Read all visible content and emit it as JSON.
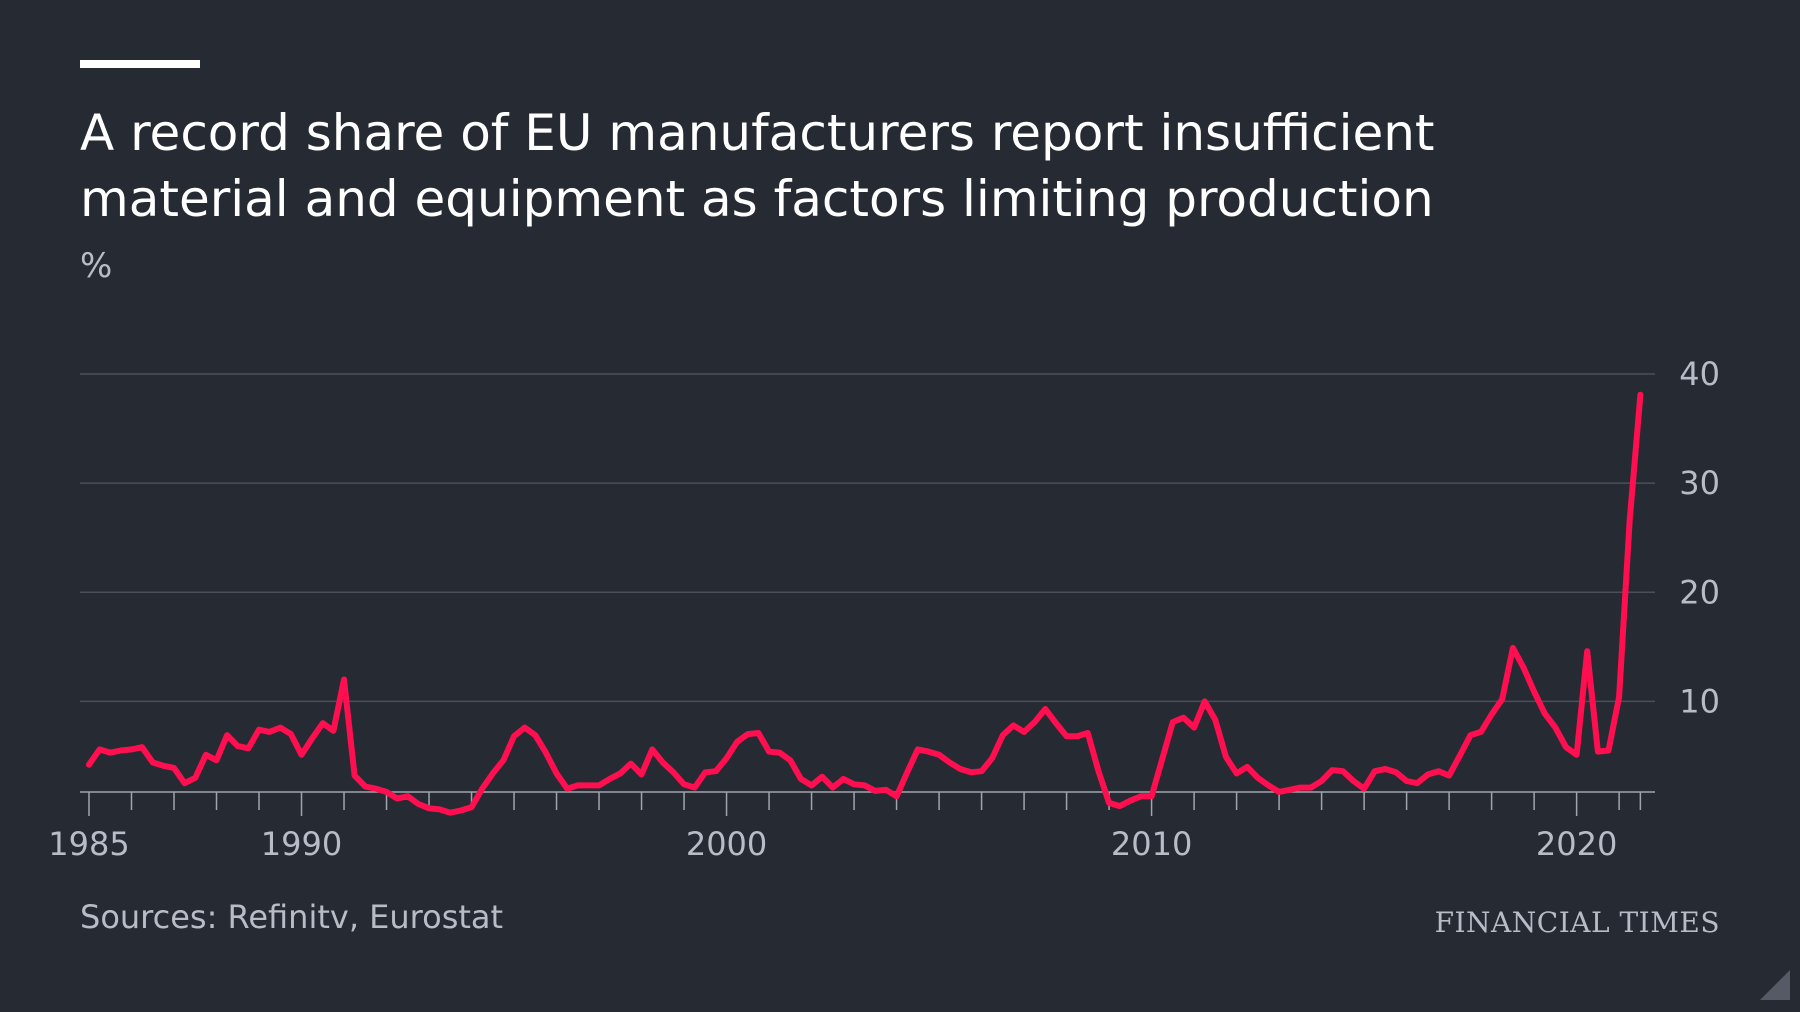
{
  "header": {
    "title": "A record share of EU manufacturers report insufficient material and equipment as factors limiting production",
    "unit": "%"
  },
  "footer": {
    "source": "Sources: Refinitv, Eurostat",
    "brand": "FINANCIAL TIMES"
  },
  "colors": {
    "background": "#262a33",
    "line": "#ff0f50",
    "grid": "#4a4f5a",
    "text_muted": "#b8bcc6"
  },
  "chart_data": {
    "type": "line",
    "title": "A record share of EU manufacturers report insufficient material and equipment as factors limiting production",
    "xlabel": "",
    "ylabel": "%",
    "xlim": [
      1985,
      2021.75
    ],
    "ylim": [
      0,
      40
    ],
    "y_ticks": [
      10,
      20,
      30,
      40
    ],
    "x_tick_labels": [
      "1985",
      "1990",
      "2000",
      "2010",
      "2020"
    ],
    "grid": true,
    "series": [
      {
        "name": "Insufficient material and equipment",
        "x": [
          1985.0,
          1985.25,
          1985.5,
          1985.75,
          1986.0,
          1986.25,
          1986.5,
          1986.75,
          1987.0,
          1987.25,
          1987.5,
          1987.75,
          1988.0,
          1988.25,
          1988.5,
          1988.75,
          1989.0,
          1989.25,
          1989.5,
          1989.75,
          1990.0,
          1990.25,
          1990.5,
          1990.75,
          1991.0,
          1991.25,
          1991.5,
          1991.75,
          1992.0,
          1992.25,
          1992.5,
          1992.75,
          1993.0,
          1993.25,
          1993.5,
          1993.75,
          1994.0,
          1994.25,
          1994.5,
          1994.75,
          1995.0,
          1995.25,
          1995.5,
          1995.75,
          1996.0,
          1996.25,
          1996.5,
          1996.75,
          1997.0,
          1997.25,
          1997.5,
          1997.75,
          1998.0,
          1998.25,
          1998.5,
          1998.75,
          1999.0,
          1999.25,
          1999.5,
          1999.75,
          2000.0,
          2000.25,
          2000.5,
          2000.75,
          2001.0,
          2001.25,
          2001.5,
          2001.75,
          2002.0,
          2002.25,
          2002.5,
          2002.75,
          2003.0,
          2003.25,
          2003.5,
          2003.75,
          2004.0,
          2004.25,
          2004.5,
          2004.75,
          2005.0,
          2005.25,
          2005.5,
          2005.75,
          2006.0,
          2006.25,
          2006.5,
          2006.75,
          2007.0,
          2007.25,
          2007.5,
          2007.75,
          2008.0,
          2008.25,
          2008.5,
          2008.75,
          2009.0,
          2009.25,
          2009.5,
          2009.75,
          2010.0,
          2010.25,
          2010.5,
          2010.75,
          2011.0,
          2011.25,
          2011.5,
          2011.75,
          2012.0,
          2012.25,
          2012.5,
          2012.75,
          2013.0,
          2013.25,
          2013.5,
          2013.75,
          2014.0,
          2014.25,
          2014.5,
          2014.75,
          2015.0,
          2015.25,
          2015.5,
          2015.75,
          2016.0,
          2016.25,
          2016.5,
          2016.75,
          2017.0,
          2017.25,
          2017.5,
          2017.75,
          2018.0,
          2018.25,
          2018.5,
          2018.75,
          2019.0,
          2019.25,
          2019.5,
          2019.75,
          2020.0,
          2020.25,
          2020.5,
          2020.75,
          2021.0,
          2021.25,
          2021.5
        ],
        "y": [
          4.2,
          5.6,
          5.3,
          5.5,
          5.6,
          5.8,
          4.4,
          4.1,
          3.9,
          2.5,
          3.0,
          5.1,
          4.6,
          6.9,
          5.9,
          5.7,
          7.4,
          7.2,
          7.6,
          7.0,
          5.1,
          6.6,
          8.0,
          7.3,
          12.0,
          3.2,
          2.2,
          2.0,
          1.7,
          1.1,
          1.3,
          0.6,
          0.2,
          0.1,
          -0.2,
          0.0,
          0.3,
          2.0,
          3.4,
          4.6,
          6.8,
          7.6,
          6.9,
          5.3,
          3.4,
          2.0,
          2.3,
          2.3,
          2.3,
          2.9,
          3.4,
          4.3,
          3.3,
          5.6,
          4.4,
          3.5,
          2.4,
          2.1,
          3.5,
          3.6,
          4.8,
          6.3,
          7.0,
          7.1,
          5.4,
          5.3,
          4.6,
          2.9,
          2.3,
          3.1,
          2.1,
          2.9,
          2.4,
          2.3,
          1.8,
          1.9,
          1.3,
          3.5,
          5.6,
          5.4,
          5.1,
          4.4,
          3.8,
          3.5,
          3.6,
          4.8,
          6.9,
          7.8,
          7.2,
          8.1,
          9.3,
          8.0,
          6.8,
          6.8,
          7.1,
          3.6,
          0.7,
          0.4,
          0.9,
          1.3,
          1.3,
          4.7,
          8.1,
          8.5,
          7.6,
          10.0,
          8.3,
          4.9,
          3.4,
          4.0,
          3.0,
          2.3,
          1.7,
          1.9,
          2.1,
          2.1,
          2.7,
          3.7,
          3.6,
          2.7,
          2.0,
          3.6,
          3.8,
          3.5,
          2.7,
          2.5,
          3.3,
          3.6,
          3.2,
          5.0,
          6.9,
          7.2,
          8.8,
          10.2,
          14.9,
          13.1,
          10.9,
          8.9,
          7.6,
          5.8,
          5.1,
          14.6,
          5.4,
          5.5,
          10.4,
          26.6,
          38.1
        ]
      }
    ]
  }
}
